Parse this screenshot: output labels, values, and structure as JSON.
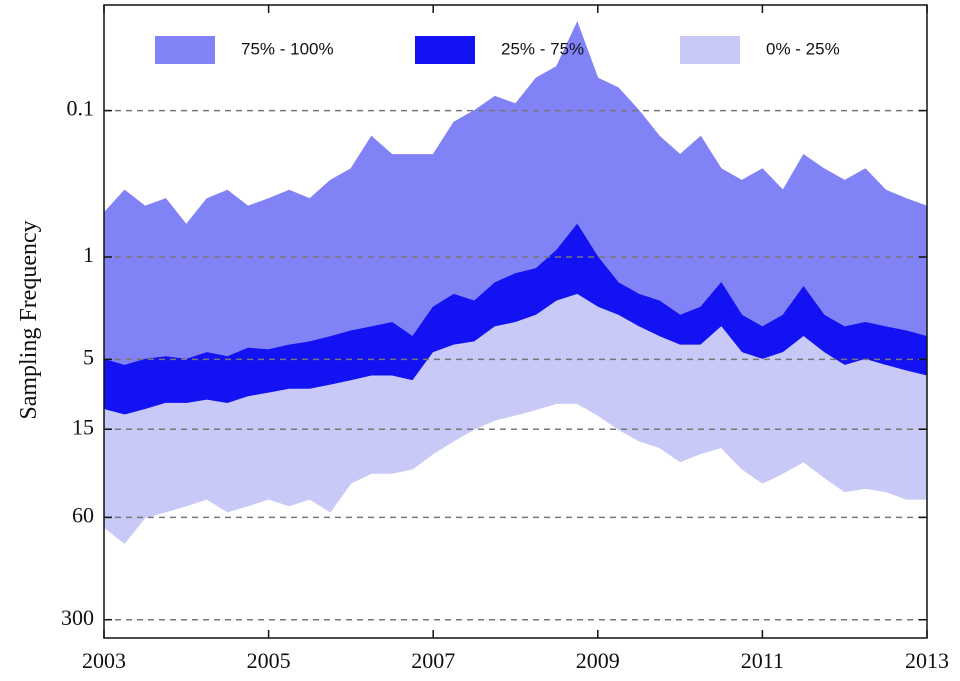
{
  "chart_data": {
    "type": "band",
    "ylabel": "Sampling Frequency",
    "x": [
      2003,
      2003.25,
      2003.5,
      2003.75,
      2004,
      2004.25,
      2004.5,
      2004.75,
      2005,
      2005.25,
      2005.5,
      2005.75,
      2006,
      2006.25,
      2006.5,
      2006.75,
      2007,
      2007.25,
      2007.5,
      2007.75,
      2008,
      2008.25,
      2008.5,
      2008.75,
      2009,
      2009.25,
      2009.5,
      2009.75,
      2010,
      2010.25,
      2010.5,
      2010.75,
      2011,
      2011.25,
      2011.5,
      2011.75,
      2012,
      2012.25,
      2012.5,
      2012.75,
      2013
    ],
    "series": [
      {
        "name": "75% - 100%",
        "color": "#8282f7",
        "values": [
          0.5,
          0.35,
          0.45,
          0.4,
          0.6,
          0.4,
          0.35,
          0.45,
          0.4,
          0.35,
          0.4,
          0.3,
          0.25,
          0.15,
          0.2,
          0.2,
          0.2,
          0.12,
          0.1,
          0.08,
          0.09,
          0.06,
          0.05,
          0.025,
          0.06,
          0.07,
          0.1,
          0.15,
          0.2,
          0.15,
          0.25,
          0.3,
          0.25,
          0.35,
          0.2,
          0.25,
          0.3,
          0.25,
          0.35,
          0.4,
          0.45
        ]
      },
      {
        "name": "25% - 75%",
        "color": "#1212f2",
        "values": [
          5,
          5.5,
          5,
          4.8,
          5,
          4.5,
          4.8,
          4.2,
          4.3,
          4,
          3.8,
          3.5,
          3.2,
          3,
          2.8,
          3.5,
          2.2,
          1.8,
          2,
          1.5,
          1.3,
          1.2,
          0.9,
          0.6,
          1,
          1.5,
          1.8,
          2,
          2.5,
          2.2,
          1.5,
          2.5,
          3,
          2.5,
          1.6,
          2.5,
          3,
          2.8,
          3,
          3.2,
          3.5
        ]
      },
      {
        "name": "0% - 25%",
        "color": "#c9c9f7",
        "values": [
          11,
          12,
          11,
          10,
          10,
          9.5,
          10,
          9,
          8.5,
          8,
          8,
          7.5,
          7,
          6.5,
          6.5,
          7,
          4.5,
          4,
          3.8,
          3,
          2.8,
          2.5,
          2,
          1.8,
          2.2,
          2.5,
          3,
          3.5,
          4,
          4,
          3,
          4.5,
          5,
          4.5,
          3.5,
          4.5,
          5.5,
          5,
          5.5,
          6,
          6.5
        ],
        "lower": [
          70,
          90,
          60,
          55,
          50,
          45,
          55,
          50,
          45,
          50,
          45,
          55,
          35,
          30,
          30,
          28,
          22,
          18,
          15,
          13,
          12,
          11,
          10,
          10,
          12,
          15,
          18,
          20,
          25,
          22,
          20,
          28,
          35,
          30,
          25,
          32,
          40,
          38,
          40,
          45,
          45
        ]
      }
    ],
    "xlim": [
      2003,
      2013
    ],
    "xticks": [
      2003,
      2005,
      2007,
      2009,
      2011,
      2013
    ],
    "ylim": [
      0.019,
      400
    ],
    "yticks": [
      0.1,
      1,
      5,
      15,
      60,
      300
    ],
    "y_log": true,
    "y_reversed": true,
    "grid": true,
    "legend": "upper center"
  }
}
